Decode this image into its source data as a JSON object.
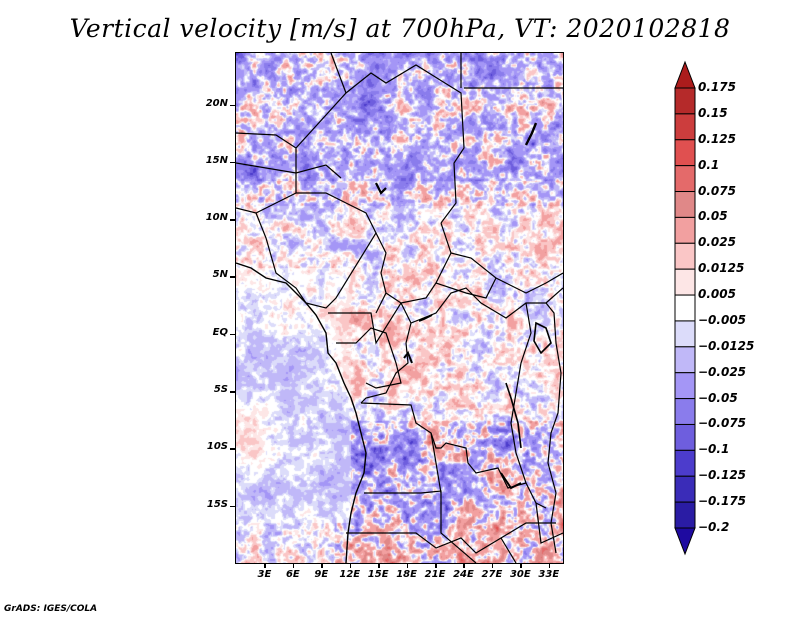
{
  "title": "Vertical velocity [m/s] at 700hPa, VT: 2020102818",
  "credit": "GrADS: IGES/COLA",
  "map": {
    "lon_range": [
      0,
      34.5
    ],
    "lat_range": [
      -20,
      24.5
    ],
    "y_ticks": [
      {
        "label": "20N",
        "lat": 20
      },
      {
        "label": "15N",
        "lat": 15
      },
      {
        "label": "10N",
        "lat": 10
      },
      {
        "label": "5N",
        "lat": 5
      },
      {
        "label": "EQ",
        "lat": 0
      },
      {
        "label": "5S",
        "lat": -5
      },
      {
        "label": "10S",
        "lat": -10
      },
      {
        "label": "15S",
        "lat": -15
      }
    ],
    "x_ticks": [
      {
        "label": "3E",
        "lon": 3
      },
      {
        "label": "6E",
        "lon": 6
      },
      {
        "label": "9E",
        "lon": 9
      },
      {
        "label": "12E",
        "lon": 12
      },
      {
        "label": "15E",
        "lon": 15
      },
      {
        "label": "18E",
        "lon": 18
      },
      {
        "label": "21E",
        "lon": 21
      },
      {
        "label": "24E",
        "lon": 24
      },
      {
        "label": "27E",
        "lon": 27
      },
      {
        "label": "30E",
        "lon": 30
      },
      {
        "label": "33E",
        "lon": 33
      }
    ]
  },
  "colorbar": {
    "levels": [
      "0.175",
      "0.15",
      "0.125",
      "0.1",
      "0.075",
      "0.05",
      "0.025",
      "0.0125",
      "0.005",
      "−0.005",
      "−0.0125",
      "−0.025",
      "−0.05",
      "−0.075",
      "−0.1",
      "−0.125",
      "−0.175",
      "−0.2"
    ],
    "colors": [
      "#ac1c1c",
      "#b52a2a",
      "#cc3d3d",
      "#e05050",
      "#e46a6a",
      "#e08888",
      "#f2a0a0",
      "#fac6c6",
      "#fde6e6",
      "#ffffff",
      "#dcdcfa",
      "#c0b8f8",
      "#a496f6",
      "#8a7cec",
      "#6e5ede",
      "#4c3ccc",
      "#3a2cb8",
      "#2a1ca4",
      "#1e0aa0"
    ],
    "upper_arrow_color": "#a01c1c",
    "lower_arrow_color": "#1e0aa0"
  }
}
